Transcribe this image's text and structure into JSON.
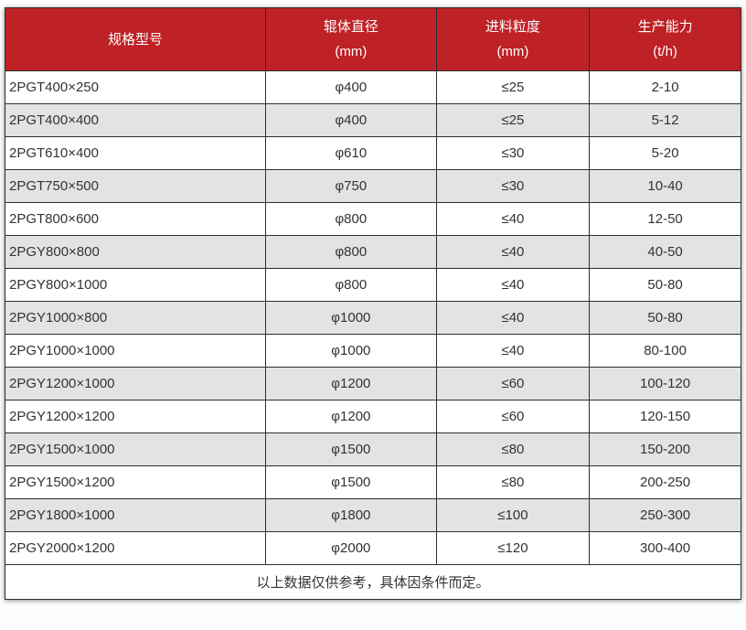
{
  "colors": {
    "header_bg": "#be2126",
    "header_text": "#ffffff",
    "row_bg": "#ffffff",
    "row_alt_bg": "#e3e3e3",
    "border": "#2e2e2e",
    "text": "#333333"
  },
  "chart_data": {
    "type": "table",
    "columns": [
      {
        "title": "规格型号",
        "unit": ""
      },
      {
        "title": "辊体直径",
        "unit": "(mm)"
      },
      {
        "title": "进料粒度",
        "unit": "(mm)"
      },
      {
        "title": "生产能力",
        "unit": "(t/h)"
      }
    ],
    "rows": [
      [
        "2PGT400×250",
        "φ400",
        "≤25",
        "2-10"
      ],
      [
        "2PGT400×400",
        "φ400",
        "≤25",
        "5-12"
      ],
      [
        "2PGT610×400",
        "φ610",
        "≤30",
        "5-20"
      ],
      [
        "2PGT750×500",
        "φ750",
        "≤30",
        "10-40"
      ],
      [
        "2PGT800×600",
        "φ800",
        "≤40",
        "12-50"
      ],
      [
        "2PGY800×800",
        "φ800",
        "≤40",
        "40-50"
      ],
      [
        "2PGY800×1000",
        "φ800",
        "≤40",
        "50-80"
      ],
      [
        "2PGY1000×800",
        "φ1000",
        "≤40",
        "50-80"
      ],
      [
        "2PGY1000×1000",
        "φ1000",
        "≤40",
        "80-100"
      ],
      [
        "2PGY1200×1000",
        "φ1200",
        "≤60",
        "100-120"
      ],
      [
        "2PGY1200×1200",
        "φ1200",
        "≤60",
        "120-150"
      ],
      [
        "2PGY1500×1000",
        "φ1500",
        "≤80",
        "150-200"
      ],
      [
        "2PGY1500×1200",
        "φ1500",
        "≤80",
        "200-250"
      ],
      [
        "2PGY1800×1000",
        "φ1800",
        "≤100",
        "250-300"
      ],
      [
        "2PGY2000×1200",
        "φ2000",
        "≤120",
        "300-400"
      ]
    ],
    "footnote": "以上数据仅供参考，具体因条件而定。"
  }
}
